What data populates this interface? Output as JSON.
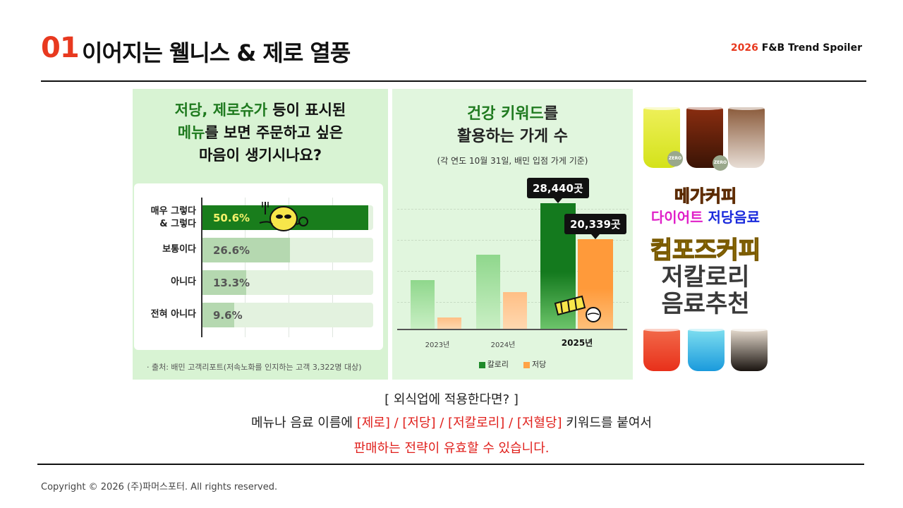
{
  "header": {
    "number": "01",
    "title": "이어지는 웰니스 & 제로 열풍",
    "tag_year": "2026",
    "tag_rest": "F&B Trend Spoiler"
  },
  "survey": {
    "question_line1_green": "저당, 제로슈가",
    "question_line1_rest": " 등이 표시된",
    "question_line2_green": "메뉴",
    "question_line2_rest": "를 보면 주문하고 싶은",
    "question_line3": "마음이 생기시나요?",
    "source": "· 출처: 배민 고객리포트(저속노화를 인지하는 고객 3,322명 대상)",
    "rows": [
      {
        "label_1": "매우 그렇다",
        "label_2": "& 그렇다",
        "value": 50.6,
        "display": "50.6%",
        "color": "#197d1c",
        "text_color": "#f4f16a"
      },
      {
        "label_1": "보통이다",
        "label_2": "",
        "value": 26.6,
        "display": "26.6%",
        "color": "#b5d8b0",
        "text_color": "#555555"
      },
      {
        "label_1": "아니다",
        "label_2": "",
        "value": 13.3,
        "display": "13.3%",
        "color": "#b5d8b0",
        "text_color": "#555555"
      },
      {
        "label_1": "전혀 아니다",
        "label_2": "",
        "value": 9.6,
        "display": "9.6%",
        "color": "#b5d8b0",
        "text_color": "#555555"
      }
    ]
  },
  "chart_data": {
    "type": "bar",
    "title": "건강 키워드를 활용하는 가게 수",
    "title_line1_green": "건강 키워드",
    "title_line1_rest": "를",
    "title_line2": "활용하는 가게 수",
    "subtitle": "(각 연도 10월 31일, 배민 입점 가게 기준)",
    "categories": [
      "2023년",
      "2024년",
      "2025년"
    ],
    "series": [
      {
        "name": "칼로리",
        "color": "#1f8a2a",
        "values": [
          11000,
          16800,
          28440
        ]
      },
      {
        "name": "저당",
        "color": "#ffa347",
        "values": [
          2600,
          8300,
          20339
        ]
      }
    ],
    "callouts": [
      "28,440곳",
      "20,339곳"
    ],
    "ylim": [
      0,
      32000
    ],
    "grid": true,
    "legend": "bottom"
  },
  "promo": {
    "brand1": "메가커피",
    "line2_a": "다이어트",
    "line2_b": "저당음료",
    "brand2": "컴포즈커피",
    "line4": "저칼로리",
    "line5": "음료추천",
    "zero_badge": "ZERO"
  },
  "message": {
    "line1": "[ 외식업에 적용한다면? ]",
    "line2_a": "메뉴나 음료 이름에 ",
    "line2_b": "[제로] / [저당] / [저칼로리] / [저혈당]",
    "line2_c": " 키워드를 붙여서",
    "line3": "판매하는 전략이 유효할 수 있습니다."
  },
  "footer": {
    "copyright": "Copyright © 2026 (주)파머스포터. All rights reserved."
  }
}
